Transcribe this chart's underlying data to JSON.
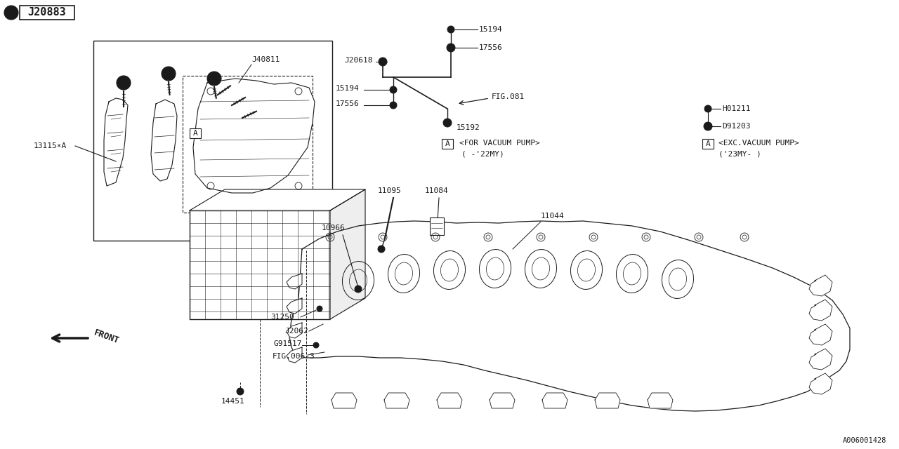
{
  "bg_color": "#ffffff",
  "line_color": "#1a1a1a",
  "labels": {
    "top_left_box": "J20883",
    "label_13115": "13115∗A",
    "label_J40811": "J40811",
    "label_J20618": "J20618",
    "label_15194_top": "15194",
    "label_17556_top": "17556",
    "label_15194_left": "15194",
    "label_17556_left": "17556",
    "label_FIG081": "FIG.081",
    "label_15192": "15192",
    "label_for_vac": "<FOR VACUUM PUMP>",
    "label_22my": "( -'22MY)",
    "label_H01211": "H01211",
    "label_D91203": "D91203",
    "label_exc_vac": "<EXC.VACUUM PUMP>",
    "label_23my": "('23MY- )",
    "label_11095": "11095",
    "label_11084": "11084",
    "label_10966": "10966",
    "label_11044": "11044",
    "label_31250": "31250",
    "label_J2062": "J2062",
    "label_G91517": "G91517",
    "label_FIG006": "FIG.006-3",
    "label_14451": "14451",
    "label_FRONT": "FRONT",
    "label_ref": "A006001428"
  },
  "font_size": 8.0,
  "font_family": "DejaVu Sans Mono"
}
